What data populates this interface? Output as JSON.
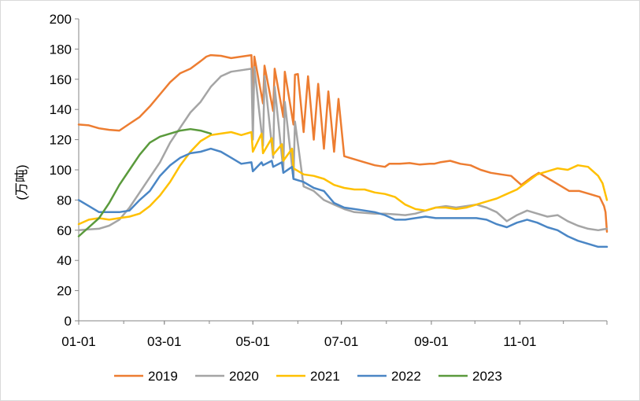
{
  "chart_data": {
    "type": "line",
    "title": "",
    "xlabel": "",
    "ylabel": "(万吨)",
    "ylim": [
      0,
      200
    ],
    "yticks": [
      0,
      20,
      40,
      60,
      80,
      100,
      120,
      140,
      160,
      180,
      200
    ],
    "xlim": [
      "01-01",
      "12-31"
    ],
    "xtick_labels": [
      "01-01",
      "03-01",
      "05-01",
      "07-01",
      "09-01",
      "11-01"
    ],
    "grid": false,
    "legend_position": "bottom",
    "series": [
      {
        "name": "2019",
        "color": "#ED7D31",
        "points": [
          [
            "01-01",
            130
          ],
          [
            "01-08",
            129.5
          ],
          [
            "01-15",
            127.5
          ],
          [
            "01-22",
            126.5
          ],
          [
            "01-29",
            126
          ],
          [
            "02-05",
            130.5
          ],
          [
            "02-12",
            135
          ],
          [
            "02-19",
            142
          ],
          [
            "02-26",
            150
          ],
          [
            "03-05",
            158
          ],
          [
            "03-12",
            164
          ],
          [
            "03-19",
            167
          ],
          [
            "03-26",
            172
          ],
          [
            "03-30",
            175
          ],
          [
            "04-02",
            176
          ],
          [
            "04-09",
            175.5
          ],
          [
            "04-16",
            174
          ],
          [
            "04-23",
            175
          ],
          [
            "04-30",
            176
          ],
          [
            "05-02",
            175
          ],
          [
            "05-09",
            169
          ],
          [
            "05-16",
            167
          ],
          [
            "05-23",
            165
          ],
          [
            "05-30",
            163
          ],
          [
            "06-01",
            163.5
          ],
          [
            "06-08",
            162
          ],
          [
            "06-15",
            157
          ],
          [
            "06-22",
            152
          ],
          [
            "06-29",
            147
          ],
          [
            "05-01",
            147
          ],
          [
            "05-08",
            144
          ],
          [
            "05-15",
            139
          ],
          [
            "05-22",
            135
          ],
          [
            "05-29",
            130
          ],
          [
            "06-05",
            125
          ],
          [
            "06-12",
            120
          ],
          [
            "06-19",
            114
          ],
          [
            "06-26",
            112
          ],
          [
            "07-03",
            109
          ],
          [
            "07-10",
            107
          ],
          [
            "07-17",
            105
          ],
          [
            "07-24",
            103
          ],
          [
            "07-31",
            102
          ],
          [
            "08-03",
            104
          ],
          [
            "08-10",
            104
          ],
          [
            "08-17",
            104.5
          ],
          [
            "08-24",
            103.5
          ],
          [
            "08-31",
            104
          ],
          [
            "09-03",
            104
          ],
          [
            "09-07",
            105
          ],
          [
            "09-14",
            106
          ],
          [
            "09-21",
            104
          ],
          [
            "09-28",
            103
          ],
          [
            "10-05",
            100
          ],
          [
            "10-12",
            98
          ],
          [
            "10-19",
            97
          ],
          [
            "10-26",
            96
          ],
          [
            "11-02",
            90
          ],
          [
            "11-09",
            95
          ],
          [
            "11-14",
            98
          ],
          [
            "11-21",
            94
          ],
          [
            "11-28",
            90
          ],
          [
            "12-05",
            86
          ],
          [
            "12-12",
            86
          ],
          [
            "12-19",
            84
          ],
          [
            "12-26",
            82
          ],
          [
            "12-27",
            80
          ],
          [
            "12-29",
            76
          ],
          [
            "12-30",
            72
          ],
          [
            "12-31",
            59
          ]
        ]
      },
      {
        "name": "2020",
        "color": "#A5A5A5",
        "points": [
          [
            "01-01",
            60
          ],
          [
            "01-08",
            60.5
          ],
          [
            "01-15",
            61
          ],
          [
            "01-22",
            63
          ],
          [
            "01-29",
            67
          ],
          [
            "02-05",
            75
          ],
          [
            "02-12",
            85
          ],
          [
            "02-19",
            95
          ],
          [
            "02-26",
            105
          ],
          [
            "03-05",
            118
          ],
          [
            "03-12",
            128
          ],
          [
            "03-19",
            138
          ],
          [
            "03-26",
            145
          ],
          [
            "04-02",
            155
          ],
          [
            "04-09",
            162
          ],
          [
            "04-16",
            165
          ],
          [
            "04-23",
            166
          ],
          [
            "04-30",
            167
          ],
          [
            "05-02",
            168
          ],
          [
            "05-09",
            162
          ],
          [
            "05-16",
            155
          ],
          [
            "05-23",
            145
          ],
          [
            "05-30",
            132
          ],
          [
            "05-01",
            120
          ],
          [
            "05-08",
            116
          ],
          [
            "05-15",
            108
          ],
          [
            "05-22",
            100
          ],
          [
            "05-29",
            94
          ],
          [
            "06-05",
            89
          ],
          [
            "06-12",
            86
          ],
          [
            "06-19",
            80
          ],
          [
            "06-26",
            77
          ],
          [
            "07-03",
            74
          ],
          [
            "07-10",
            72
          ],
          [
            "07-17",
            71.5
          ],
          [
            "07-24",
            71
          ],
          [
            "07-31",
            71
          ],
          [
            "08-07",
            70.5
          ],
          [
            "08-14",
            70
          ],
          [
            "08-21",
            71
          ],
          [
            "08-28",
            73
          ],
          [
            "09-04",
            75
          ],
          [
            "09-11",
            76
          ],
          [
            "09-18",
            75
          ],
          [
            "09-25",
            76
          ],
          [
            "10-02",
            77
          ],
          [
            "10-09",
            75
          ],
          [
            "10-16",
            72
          ],
          [
            "10-23",
            66
          ],
          [
            "10-30",
            70
          ],
          [
            "11-06",
            73
          ],
          [
            "11-13",
            71
          ],
          [
            "11-20",
            69
          ],
          [
            "11-27",
            70
          ],
          [
            "12-04",
            66
          ],
          [
            "12-11",
            63
          ],
          [
            "12-18",
            61
          ],
          [
            "12-25",
            60
          ],
          [
            "12-31",
            61
          ]
        ]
      },
      {
        "name": "2021",
        "color": "#FFC000",
        "points": [
          [
            "01-01",
            64
          ],
          [
            "01-08",
            67
          ],
          [
            "01-15",
            68
          ],
          [
            "01-22",
            67
          ],
          [
            "01-29",
            68
          ],
          [
            "02-05",
            69
          ],
          [
            "02-12",
            71
          ],
          [
            "02-19",
            76
          ],
          [
            "02-26",
            83
          ],
          [
            "03-05",
            92
          ],
          [
            "03-12",
            103
          ],
          [
            "03-19",
            112
          ],
          [
            "03-26",
            119
          ],
          [
            "04-02",
            123
          ],
          [
            "04-09",
            124
          ],
          [
            "04-16",
            125
          ],
          [
            "04-23",
            123
          ],
          [
            "04-30",
            125
          ],
          [
            "05-07",
            124
          ],
          [
            "05-14",
            121
          ],
          [
            "05-21",
            117
          ],
          [
            "05-28",
            114
          ],
          [
            "05-01",
            112
          ],
          [
            "05-08",
            111
          ],
          [
            "05-15",
            110
          ],
          [
            "05-22",
            106
          ],
          [
            "05-29",
            101
          ],
          [
            "06-05",
            97
          ],
          [
            "06-12",
            96
          ],
          [
            "06-19",
            94
          ],
          [
            "06-26",
            90
          ],
          [
            "07-03",
            88
          ],
          [
            "07-10",
            87
          ],
          [
            "07-17",
            87
          ],
          [
            "07-24",
            85
          ],
          [
            "07-31",
            84
          ],
          [
            "08-07",
            82
          ],
          [
            "08-14",
            77
          ],
          [
            "08-21",
            74
          ],
          [
            "08-28",
            73
          ],
          [
            "09-04",
            75
          ],
          [
            "09-11",
            75
          ],
          [
            "09-18",
            74
          ],
          [
            "09-25",
            75
          ],
          [
            "10-02",
            77
          ],
          [
            "10-09",
            79
          ],
          [
            "10-16",
            81
          ],
          [
            "10-23",
            84
          ],
          [
            "10-30",
            87
          ],
          [
            "11-06",
            92
          ],
          [
            "11-13",
            97
          ],
          [
            "11-20",
            99
          ],
          [
            "11-27",
            101
          ],
          [
            "12-04",
            100
          ],
          [
            "12-11",
            103
          ],
          [
            "12-18",
            102
          ],
          [
            "12-25",
            96
          ],
          [
            "12-28",
            91
          ],
          [
            "12-31",
            80
          ]
        ]
      },
      {
        "name": "2022",
        "color": "#4A86C5",
        "points": [
          [
            "01-01",
            80
          ],
          [
            "01-08",
            76
          ],
          [
            "01-15",
            72
          ],
          [
            "01-22",
            72
          ],
          [
            "01-29",
            72
          ],
          [
            "02-05",
            73
          ],
          [
            "02-12",
            80
          ],
          [
            "02-19",
            86
          ],
          [
            "02-26",
            96
          ],
          [
            "03-05",
            103
          ],
          [
            "03-12",
            108
          ],
          [
            "03-19",
            111
          ],
          [
            "03-26",
            112
          ],
          [
            "04-02",
            114
          ],
          [
            "04-09",
            112
          ],
          [
            "04-16",
            108
          ],
          [
            "04-23",
            104
          ],
          [
            "04-30",
            105
          ],
          [
            "05-07",
            105
          ],
          [
            "05-14",
            106
          ],
          [
            "05-21",
            105
          ],
          [
            "05-28",
            102
          ],
          [
            "05-01",
            99
          ],
          [
            "05-08",
            103
          ],
          [
            "05-15",
            102
          ],
          [
            "05-22",
            98
          ],
          [
            "05-29",
            94
          ],
          [
            "06-05",
            92
          ],
          [
            "06-12",
            88
          ],
          [
            "06-19",
            86
          ],
          [
            "06-26",
            78
          ],
          [
            "07-03",
            75
          ],
          [
            "07-10",
            74
          ],
          [
            "07-17",
            73
          ],
          [
            "07-24",
            72
          ],
          [
            "07-31",
            70
          ],
          [
            "08-07",
            67
          ],
          [
            "08-14",
            67
          ],
          [
            "08-21",
            68
          ],
          [
            "08-28",
            69
          ],
          [
            "09-04",
            68
          ],
          [
            "09-11",
            68
          ],
          [
            "09-18",
            68
          ],
          [
            "09-25",
            68
          ],
          [
            "10-02",
            68
          ],
          [
            "10-09",
            67
          ],
          [
            "10-16",
            64
          ],
          [
            "10-23",
            62
          ],
          [
            "10-30",
            65
          ],
          [
            "11-06",
            67
          ],
          [
            "11-13",
            65
          ],
          [
            "11-20",
            62
          ],
          [
            "11-27",
            60
          ],
          [
            "12-04",
            56
          ],
          [
            "12-11",
            53
          ],
          [
            "12-18",
            51
          ],
          [
            "12-25",
            49
          ],
          [
            "12-31",
            49
          ]
        ]
      },
      {
        "name": "2023",
        "color": "#5A9A3C",
        "points": [
          [
            "01-01",
            56
          ],
          [
            "01-08",
            62
          ],
          [
            "01-15",
            68
          ],
          [
            "01-22",
            78
          ],
          [
            "01-29",
            90
          ],
          [
            "02-05",
            100
          ],
          [
            "02-12",
            110
          ],
          [
            "02-19",
            118
          ],
          [
            "02-26",
            122
          ],
          [
            "03-05",
            124
          ],
          [
            "03-12",
            126
          ],
          [
            "03-19",
            127
          ],
          [
            "03-26",
            126
          ],
          [
            "04-02",
            124
          ]
        ]
      }
    ]
  }
}
